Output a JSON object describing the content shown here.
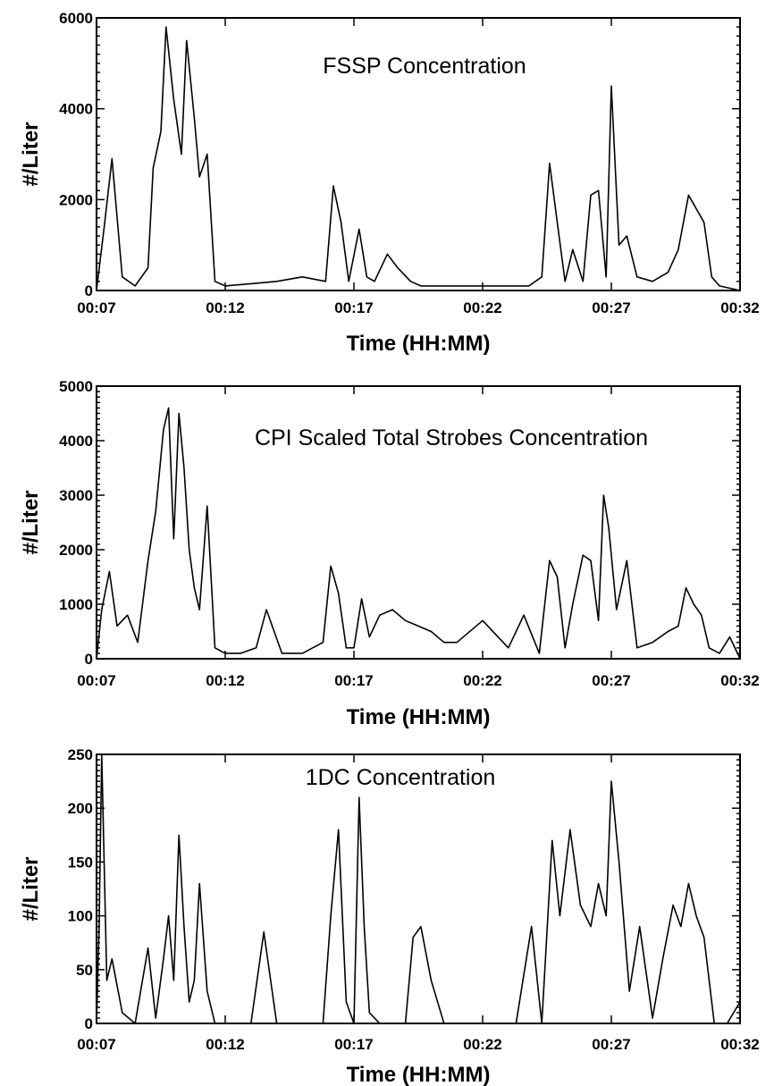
{
  "chart_data": [
    {
      "type": "line",
      "title": "FSSP Concentration",
      "xlabel": "Time (HH:MM)",
      "ylabel": "#/Liter",
      "x_tick_labels": [
        "00:07",
        "00:12",
        "00:17",
        "00:22",
        "00:27",
        "00:32"
      ],
      "xlim": [
        "00:07",
        "00:32"
      ],
      "y_ticks": [
        0,
        2000,
        4000,
        6000
      ],
      "ylim": [
        0,
        6000
      ],
      "grid": false,
      "series": [
        {
          "x": [
            "00:07",
            "00:07.3",
            "00:07.6",
            "00:08.0",
            "00:08.5",
            "00:09.0",
            "00:09.2",
            "00:09.5",
            "00:09.7",
            "00:10.0",
            "00:10.3",
            "00:10.5",
            "00:10.8",
            "00:11.0",
            "00:11.3",
            "00:11.6",
            "00:12.0",
            "00:13.0",
            "00:14.0",
            "00:15.0",
            "00:15.9",
            "00:16.2",
            "00:16.5",
            "00:16.8",
            "00:17.2",
            "00:17.5",
            "00:17.8",
            "00:18.3",
            "00:18.7",
            "00:19.2",
            "00:19.6",
            "00:20.0",
            "00:21.0",
            "00:22.0",
            "00:23.0",
            "00:23.8",
            "00:24.3",
            "00:24.6",
            "00:24.9",
            "00:25.2",
            "00:25.5",
            "00:25.9",
            "00:26.2",
            "00:26.5",
            "00:26.8",
            "00:27.0",
            "00:27.3",
            "00:27.6",
            "00:28.0",
            "00:28.6",
            "00:29.2",
            "00:29.6",
            "00:30.0",
            "00:30.3",
            "00:30.6",
            "00:30.9",
            "00:31.2",
            "00:32"
          ],
          "y": [
            0,
            1400,
            2900,
            300,
            100,
            500,
            2700,
            3500,
            5800,
            4200,
            3000,
            5500,
            3800,
            2500,
            3000,
            200,
            100,
            150,
            200,
            300,
            200,
            2300,
            1500,
            200,
            1350,
            300,
            200,
            800,
            500,
            200,
            100,
            100,
            100,
            100,
            100,
            100,
            300,
            2800,
            1500,
            200,
            900,
            200,
            2100,
            2200,
            300,
            4500,
            1000,
            1200,
            300,
            200,
            400,
            900,
            2100,
            1800,
            1500,
            300,
            100,
            0
          ]
        }
      ]
    },
    {
      "type": "line",
      "title": "CPI Scaled Total Strobes Concentration",
      "xlabel": "Time (HH:MM)",
      "ylabel": "#/Liter",
      "x_tick_labels": [
        "00:07",
        "00:12",
        "00:17",
        "00:22",
        "00:27",
        "00:32"
      ],
      "xlim": [
        "00:07",
        "00:32"
      ],
      "y_ticks": [
        0,
        1000,
        2000,
        3000,
        4000,
        5000
      ],
      "ylim": [
        0,
        5000
      ],
      "grid": false,
      "series": [
        {
          "x": [
            "00:07",
            "00:07.2",
            "00:07.5",
            "00:07.8",
            "00:08.2",
            "00:08.6",
            "00:09.0",
            "00:09.3",
            "00:09.6",
            "00:09.8",
            "00:10.0",
            "00:10.2",
            "00:10.4",
            "00:10.6",
            "00:10.8",
            "00:11.0",
            "00:11.3",
            "00:11.6",
            "00:12.0",
            "00:12.6",
            "00:13.2",
            "00:13.6",
            "00:14.2",
            "00:15.0",
            "00:15.8",
            "00:16.1",
            "00:16.4",
            "00:16.7",
            "00:17.0",
            "00:17.3",
            "00:17.6",
            "00:18.0",
            "00:18.5",
            "00:19.0",
            "00:19.5",
            "00:20.0",
            "00:20.5",
            "00:21.0",
            "00:22.0",
            "00:23.0",
            "00:23.6",
            "00:24.2",
            "00:24.6",
            "00:24.9",
            "00:25.2",
            "00:25.5",
            "00:25.9",
            "00:26.2",
            "00:26.5",
            "00:26.7",
            "00:26.9",
            "00:27.2",
            "00:27.6",
            "00:28.0",
            "00:28.6",
            "00:29.2",
            "00:29.6",
            "00:29.9",
            "00:30.2",
            "00:30.5",
            "00:30.8",
            "00:31.2",
            "00:31.6",
            "00:32"
          ],
          "y": [
            0,
            900,
            1600,
            600,
            800,
            300,
            1800,
            2700,
            4200,
            4600,
            2200,
            4500,
            3500,
            2000,
            1300,
            900,
            2800,
            200,
            100,
            100,
            200,
            900,
            100,
            100,
            300,
            1700,
            1200,
            200,
            200,
            1100,
            400,
            800,
            900,
            700,
            600,
            500,
            300,
            300,
            700,
            200,
            800,
            100,
            1800,
            1500,
            200,
            1000,
            1900,
            1800,
            700,
            3000,
            2400,
            900,
            1800,
            200,
            300,
            500,
            600,
            1300,
            1000,
            800,
            200,
            100,
            400,
            0
          ]
        }
      ]
    },
    {
      "type": "line",
      "title": "1DC Concentration",
      "xlabel": "Time (HH:MM)",
      "ylabel": "#/Liter",
      "x_tick_labels": [
        "00:07",
        "00:12",
        "00:17",
        "00:22",
        "00:27",
        "00:32"
      ],
      "xlim": [
        "00:07",
        "00:32"
      ],
      "y_ticks": [
        0,
        50,
        100,
        150,
        200,
        250
      ],
      "ylim": [
        0,
        250
      ],
      "grid": false,
      "series": [
        {
          "x": [
            "00:07",
            "00:07.1",
            "00:07.2",
            "00:07.4",
            "00:07.6",
            "00:08.0",
            "00:08.5",
            "00:09.0",
            "00:09.3",
            "00:09.6",
            "00:09.8",
            "00:10.0",
            "00:10.2",
            "00:10.4",
            "00:10.6",
            "00:10.8",
            "00:11.0",
            "00:11.3",
            "00:11.6",
            "00:12.0",
            "00:13.0",
            "00:13.5",
            "00:14.0",
            "00:15.0",
            "00:15.8",
            "00:16.1",
            "00:16.4",
            "00:16.7",
            "00:17.0",
            "00:17.2",
            "00:17.4",
            "00:17.6",
            "00:18.0",
            "00:18.5",
            "00:19.0",
            "00:19.3",
            "00:19.6",
            "00:20.0",
            "00:20.5",
            "00:21.0",
            "00:22.0",
            "00:23.0",
            "00:23.3",
            "00:23.9",
            "00:24.3",
            "00:24.7",
            "00:25.0",
            "00:25.4",
            "00:25.8",
            "00:26.2",
            "00:26.5",
            "00:26.8",
            "00:27.0",
            "00:27.3",
            "00:27.7",
            "00:28.1",
            "00:28.6",
            "00:29.0",
            "00:29.4",
            "00:29.7",
            "00:30.0",
            "00:30.3",
            "00:30.6",
            "00:31.0",
            "00:31.5",
            "00:32"
          ],
          "y": [
            0,
            90,
            250,
            40,
            60,
            10,
            0,
            70,
            5,
            60,
            100,
            40,
            175,
            90,
            20,
            40,
            130,
            30,
            0,
            0,
            0,
            85,
            0,
            0,
            0,
            100,
            180,
            20,
            0,
            210,
            90,
            10,
            0,
            0,
            0,
            80,
            90,
            40,
            0,
            0,
            0,
            0,
            0,
            90,
            0,
            170,
            100,
            180,
            110,
            90,
            130,
            100,
            225,
            150,
            30,
            90,
            5,
            60,
            110,
            90,
            130,
            100,
            80,
            0,
            0,
            20
          ]
        }
      ]
    }
  ]
}
